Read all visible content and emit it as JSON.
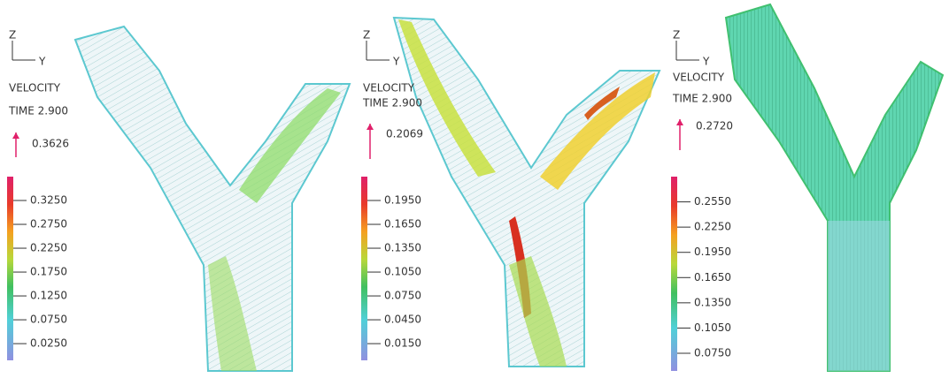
{
  "panels": [
    {
      "axis_up": "Z",
      "axis_right": "Y",
      "quantity": "VELOCITY",
      "time": "TIME 2.900",
      "reference": "0.3626",
      "scale": [
        "0.3250",
        "0.2750",
        "0.2250",
        "0.1750",
        "0.1250",
        "0.0750",
        "0.0250"
      ]
    },
    {
      "axis_up": "Z",
      "axis_right": "Y",
      "quantity": "VELOCITY",
      "time": "TIME 2.900",
      "reference": "0.2069",
      "scale": [
        "0.1950",
        "0.1650",
        "0.1350",
        "0.1050",
        "0.0750",
        "0.0450",
        "0.0150"
      ]
    },
    {
      "axis_up": "Z",
      "axis_right": "Y",
      "quantity": "VELOCITY",
      "time": "TIME 2.900",
      "reference": "0.2720",
      "scale": [
        "0.2550",
        "0.2250",
        "0.1950",
        "0.1650",
        "0.1350",
        "0.1050",
        "0.0750"
      ]
    }
  ]
}
